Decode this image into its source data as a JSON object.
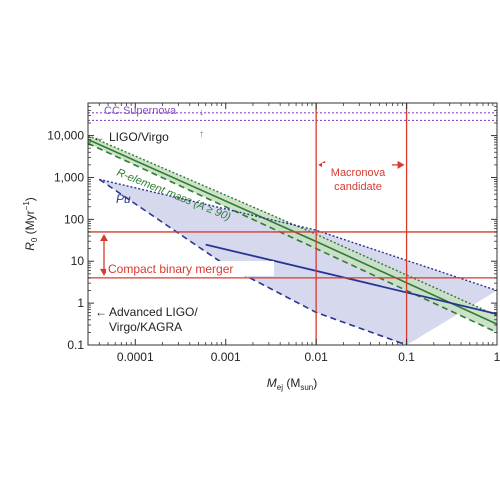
{
  "chart_data": {
    "type": "line",
    "xlabel": {
      "main": "M",
      "sub1": "ej",
      "mid": " (M",
      "sub2": "sun",
      "end": ")"
    },
    "ylabel": {
      "main": "R",
      "sub1": "0",
      "mid": " (Myr",
      "sup": "−1",
      "end": ")"
    },
    "x_scale": "log",
    "y_scale": "log",
    "xlim": [
      3e-05,
      1
    ],
    "ylim": [
      0.1,
      60000
    ],
    "x_ticks": [
      {
        "value": 0.0001,
        "label": "0.0001"
      },
      {
        "value": 0.001,
        "label": "0.001"
      },
      {
        "value": 0.01,
        "label": "0.01"
      },
      {
        "value": 0.1,
        "label": "0.1"
      },
      {
        "value": 1,
        "label": "1"
      }
    ],
    "y_ticks": [
      {
        "value": 0.1,
        "label": "0.1"
      },
      {
        "value": 1,
        "label": "1"
      },
      {
        "value": 10,
        "label": "10"
      },
      {
        "value": 100,
        "label": "100"
      },
      {
        "value": 1000,
        "label": "1,000"
      },
      {
        "value": 10000,
        "label": "10,000"
      }
    ],
    "colors": {
      "green": "#2e7d32",
      "green_fill": "#c9dfc4",
      "blue": "#283593",
      "blue_fill": "#d6d8ee",
      "red": "#d83a2f",
      "purple": "#8a4fc0",
      "black": "#222222"
    },
    "bands": [
      {
        "name": "r_element",
        "upper": [
          [
            3e-05,
            10000
          ],
          [
            0.01,
            44
          ],
          [
            1,
            0.5
          ]
        ],
        "lower": [
          [
            3e-05,
            6500
          ],
          [
            0.01,
            20
          ],
          [
            1,
            0.2
          ]
        ]
      },
      {
        "name": "pu",
        "upper": [
          [
            4e-05,
            900
          ],
          [
            0.01,
            55
          ],
          [
            1,
            2
          ]
        ],
        "lower": [
          [
            0.0006,
            25
          ],
          [
            1,
            0.55
          ]
        ],
        "dashed_lower": [
          [
            4e-05,
            900
          ],
          [
            0.001,
            8
          ],
          [
            0.01,
            0.6
          ],
          [
            0.1,
            0.1
          ]
        ]
      }
    ],
    "cc_supernova_lines": [
      35000,
      23000
    ],
    "macronova_lines_x": [
      0.01,
      0.1
    ],
    "macronova_arrow_y": 2000,
    "compact_lines_y": [
      50,
      4
    ],
    "annotations": {
      "cc_supernova": "CC Supernova",
      "ligo_virgo": "LIGO/Virgo",
      "r_element": "R-element mass (A ≥ 90)",
      "pu": "Pu",
      "macronova_line1": "Macronova",
      "macronova_line2": "candidate",
      "compact_merger": "Compact binary merger",
      "advanced_line1": "Advanced LIGO/",
      "advanced_line2": "Virgo/KAGRA"
    }
  }
}
